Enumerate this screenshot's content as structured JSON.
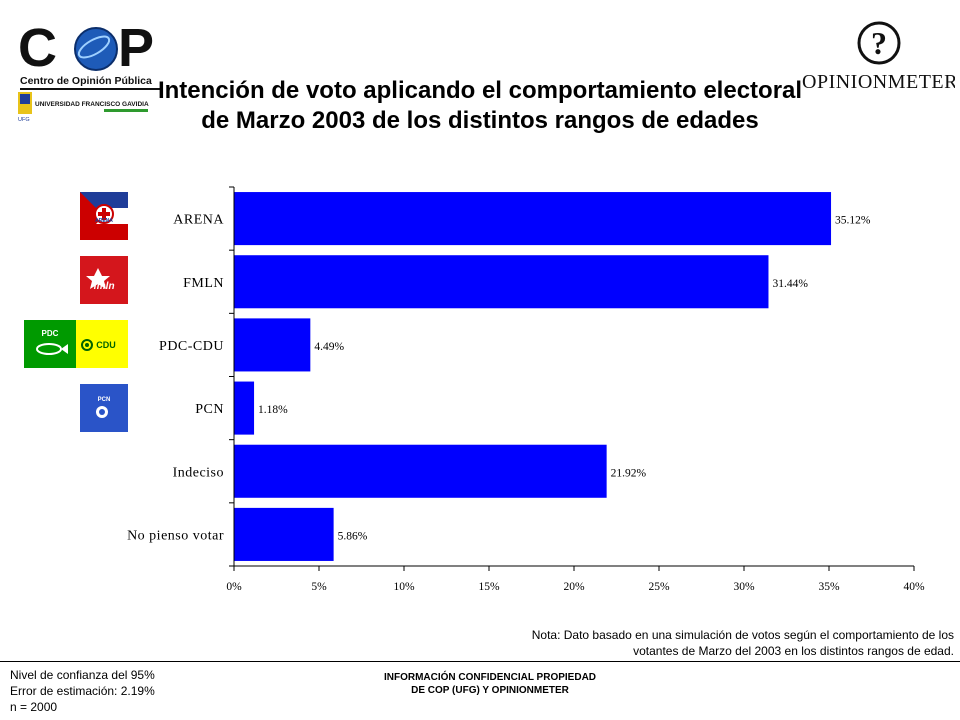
{
  "header": {
    "title": "Intención de voto aplicando el comportamiento electoral de Marzo 2003 de los distintos rangos de edades",
    "cop_logo": {
      "brand": "COP",
      "caption": "Centro de Opinión Pública",
      "university": "UNIVERSIDAD FRANCISCO GAVIDIA",
      "univ_short": "UFG"
    },
    "opinionmeter_logo": {
      "symbol": "?",
      "name": "OPINIONMETER"
    }
  },
  "party_logos": {
    "arena": "ARENA",
    "fmln": "fmln",
    "pdc": "PDC",
    "cdu": "CDU",
    "pcn": "PCN"
  },
  "colors": {
    "bar": "#0000ff",
    "arena_red": "#cc0000",
    "arena_blue": "#1f3d99",
    "fmln_red": "#d4161c",
    "pdc_green": "#009a00",
    "cdu_yellow": "#ffff00",
    "pcn_blue": "#2a54c8"
  },
  "chart_data": {
    "type": "bar",
    "orientation": "horizontal",
    "categories": [
      "ARENA",
      "FMLN",
      "PDC-CDU",
      "PCN",
      "Indeciso",
      "No pienso votar"
    ],
    "values": [
      35.12,
      31.44,
      4.49,
      1.18,
      21.92,
      5.86
    ],
    "data_labels": [
      "35.12%",
      "31.44%",
      "4.49%",
      "1.18%",
      "21.92%",
      "5.86%"
    ],
    "x_ticks": [
      "0%",
      "5%",
      "10%",
      "15%",
      "20%",
      "25%",
      "30%",
      "35%",
      "40%"
    ],
    "xlim": [
      0,
      40
    ],
    "grid": false,
    "legend": "none"
  },
  "note": {
    "line1": "Nota: Dato basado en una  simulación de votos según el comportamiento de los",
    "line2": "votantes de Marzo  del 2003  en los distintos rangos de edad."
  },
  "footer": {
    "stats": [
      "Nivel de confianza del 95%",
      "Error de estimación: 2.19%",
      "n = 2000"
    ],
    "confidential": [
      "INFORMACIÓN CONFIDENCIAL PROPIEDAD",
      "DE COP (UFG) Y OPINIONMETER"
    ]
  }
}
